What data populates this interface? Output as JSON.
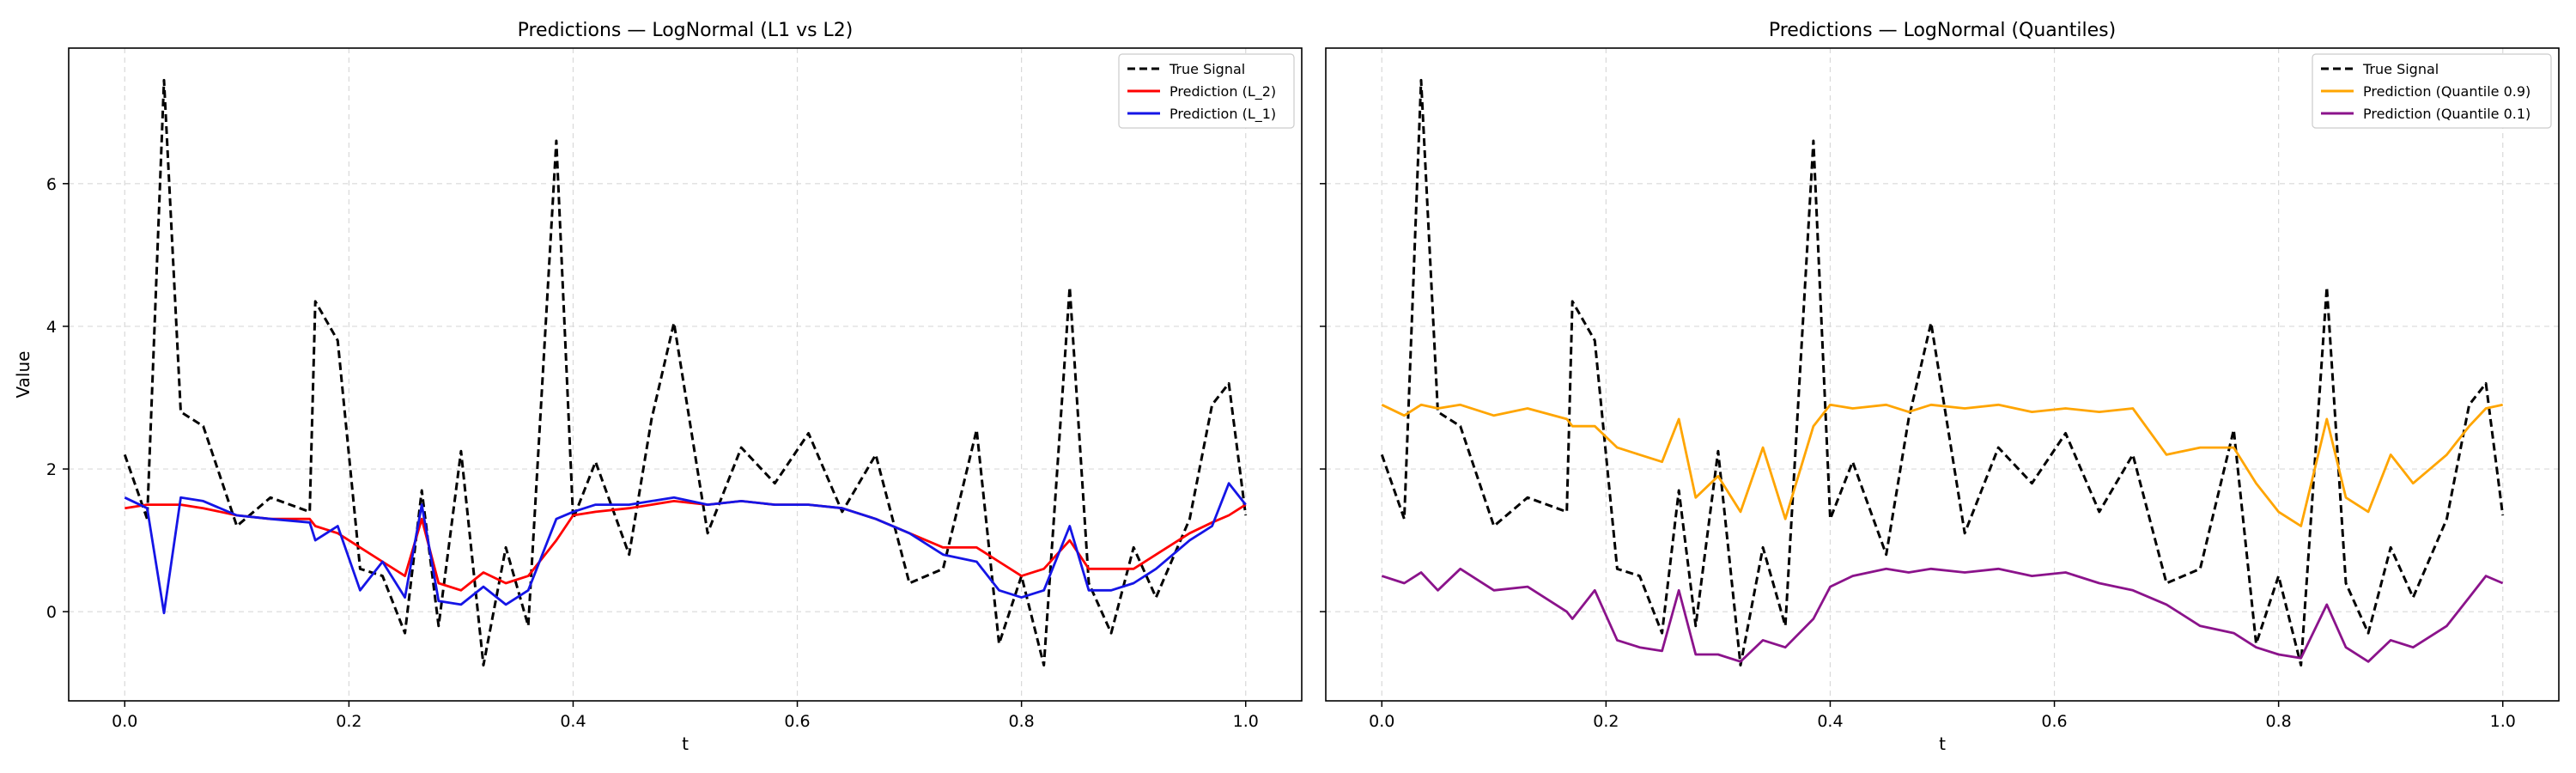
{
  "chart_data": [
    {
      "type": "line",
      "title": "Predictions — LogNormal (L1 vs L2)",
      "xlabel": "t",
      "ylabel": "Value",
      "xlim": [
        -0.05,
        1.05
      ],
      "ylim": [
        -1.25,
        7.9
      ],
      "xticks": [
        "0.0",
        "0.2",
        "0.4",
        "0.6",
        "0.8",
        "1.0"
      ],
      "yticks": [
        "0",
        "2",
        "4",
        "6"
      ],
      "grid": true,
      "legend_position": "top-right",
      "x": [
        0.0,
        0.02,
        0.035,
        0.05,
        0.07,
        0.1,
        0.13,
        0.165,
        0.17,
        0.19,
        0.21,
        0.23,
        0.25,
        0.265,
        0.28,
        0.3,
        0.32,
        0.34,
        0.36,
        0.385,
        0.4,
        0.42,
        0.45,
        0.47,
        0.49,
        0.52,
        0.55,
        0.58,
        0.61,
        0.64,
        0.67,
        0.7,
        0.73,
        0.76,
        0.78,
        0.8,
        0.82,
        0.843,
        0.86,
        0.88,
        0.9,
        0.92,
        0.95,
        0.97,
        0.985,
        1.0
      ],
      "series": [
        {
          "name": "True Signal",
          "color": "#000000",
          "dash": true,
          "values": [
            2.2,
            1.3,
            7.45,
            2.8,
            2.6,
            1.2,
            1.6,
            1.4,
            4.35,
            3.8,
            0.6,
            0.5,
            -0.3,
            1.7,
            -0.2,
            2.25,
            -0.75,
            0.9,
            -0.2,
            6.6,
            1.3,
            2.1,
            0.8,
            2.7,
            4.05,
            1.1,
            2.3,
            1.8,
            2.5,
            1.4,
            2.2,
            0.4,
            0.6,
            2.55,
            -0.45,
            0.5,
            -0.75,
            4.55,
            0.4,
            -0.3,
            0.9,
            0.2,
            1.3,
            2.9,
            3.2,
            1.35
          ]
        },
        {
          "name": "Prediction (L_2)",
          "color": "#ff0000",
          "values": [
            1.45,
            1.5,
            1.5,
            1.5,
            1.45,
            1.35,
            1.3,
            1.3,
            1.2,
            1.1,
            0.9,
            0.7,
            0.5,
            1.3,
            0.4,
            0.3,
            0.55,
            0.4,
            0.5,
            1.0,
            1.35,
            1.4,
            1.45,
            1.5,
            1.55,
            1.5,
            1.55,
            1.5,
            1.5,
            1.45,
            1.3,
            1.1,
            0.9,
            0.9,
            0.7,
            0.5,
            0.6,
            1.0,
            0.6,
            0.6,
            0.6,
            0.8,
            1.1,
            1.25,
            1.35,
            1.5
          ]
        },
        {
          "name": "Prediction (L_1)",
          "color": "#1515e6",
          "values": [
            1.6,
            1.45,
            -0.02,
            1.6,
            1.55,
            1.35,
            1.3,
            1.25,
            1.0,
            1.2,
            0.3,
            0.7,
            0.2,
            1.5,
            0.15,
            0.1,
            0.35,
            0.1,
            0.3,
            1.3,
            1.4,
            1.5,
            1.5,
            1.55,
            1.6,
            1.5,
            1.55,
            1.5,
            1.5,
            1.45,
            1.3,
            1.1,
            0.8,
            0.7,
            0.3,
            0.2,
            0.3,
            1.2,
            0.3,
            0.3,
            0.4,
            0.6,
            1.0,
            1.2,
            1.8,
            1.5
          ]
        }
      ]
    },
    {
      "type": "line",
      "title": "Predictions — LogNormal (Quantiles)",
      "xlabel": "t",
      "xlim": [
        -0.05,
        1.05
      ],
      "ylim": [
        -1.25,
        7.9
      ],
      "xticks": [
        "0.0",
        "0.2",
        "0.4",
        "0.6",
        "0.8",
        "1.0"
      ],
      "grid": true,
      "legend_position": "top-right",
      "x": [
        0.0,
        0.02,
        0.035,
        0.05,
        0.07,
        0.1,
        0.13,
        0.165,
        0.17,
        0.19,
        0.21,
        0.23,
        0.25,
        0.265,
        0.28,
        0.3,
        0.32,
        0.34,
        0.36,
        0.385,
        0.4,
        0.42,
        0.45,
        0.47,
        0.49,
        0.52,
        0.55,
        0.58,
        0.61,
        0.64,
        0.67,
        0.7,
        0.73,
        0.76,
        0.78,
        0.8,
        0.82,
        0.843,
        0.86,
        0.88,
        0.9,
        0.92,
        0.95,
        0.97,
        0.985,
        1.0
      ],
      "series": [
        {
          "name": "True Signal",
          "color": "#000000",
          "dash": true,
          "values": [
            2.2,
            1.3,
            7.45,
            2.8,
            2.6,
            1.2,
            1.6,
            1.4,
            4.35,
            3.8,
            0.6,
            0.5,
            -0.3,
            1.7,
            -0.2,
            2.25,
            -0.75,
            0.9,
            -0.2,
            6.6,
            1.3,
            2.1,
            0.8,
            2.7,
            4.05,
            1.1,
            2.3,
            1.8,
            2.5,
            1.4,
            2.2,
            0.4,
            0.6,
            2.55,
            -0.45,
            0.5,
            -0.75,
            4.55,
            0.4,
            -0.3,
            0.9,
            0.2,
            1.3,
            2.9,
            3.2,
            1.35
          ]
        },
        {
          "name": "Prediction (Quantile 0.9)",
          "color": "#ffa500",
          "values": [
            2.9,
            2.75,
            2.9,
            2.85,
            2.9,
            2.75,
            2.85,
            2.7,
            2.6,
            2.6,
            2.3,
            2.2,
            2.1,
            2.7,
            1.6,
            1.9,
            1.4,
            2.3,
            1.3,
            2.6,
            2.9,
            2.85,
            2.9,
            2.8,
            2.9,
            2.85,
            2.9,
            2.8,
            2.85,
            2.8,
            2.85,
            2.2,
            2.3,
            2.3,
            1.8,
            1.4,
            1.2,
            2.7,
            1.6,
            1.4,
            2.2,
            1.8,
            2.2,
            2.6,
            2.85,
            2.9
          ]
        },
        {
          "name": "Prediction (Quantile 0.1)",
          "color": "#8b138b",
          "values": [
            0.5,
            0.4,
            0.55,
            0.3,
            0.6,
            0.3,
            0.35,
            0.0,
            -0.1,
            0.3,
            -0.4,
            -0.5,
            -0.55,
            0.3,
            -0.6,
            -0.6,
            -0.7,
            -0.4,
            -0.5,
            -0.1,
            0.35,
            0.5,
            0.6,
            0.55,
            0.6,
            0.55,
            0.6,
            0.5,
            0.55,
            0.4,
            0.3,
            0.1,
            -0.2,
            -0.3,
            -0.5,
            -0.6,
            -0.65,
            0.1,
            -0.5,
            -0.7,
            -0.4,
            -0.5,
            -0.2,
            0.2,
            0.5,
            0.4
          ]
        }
      ]
    }
  ]
}
